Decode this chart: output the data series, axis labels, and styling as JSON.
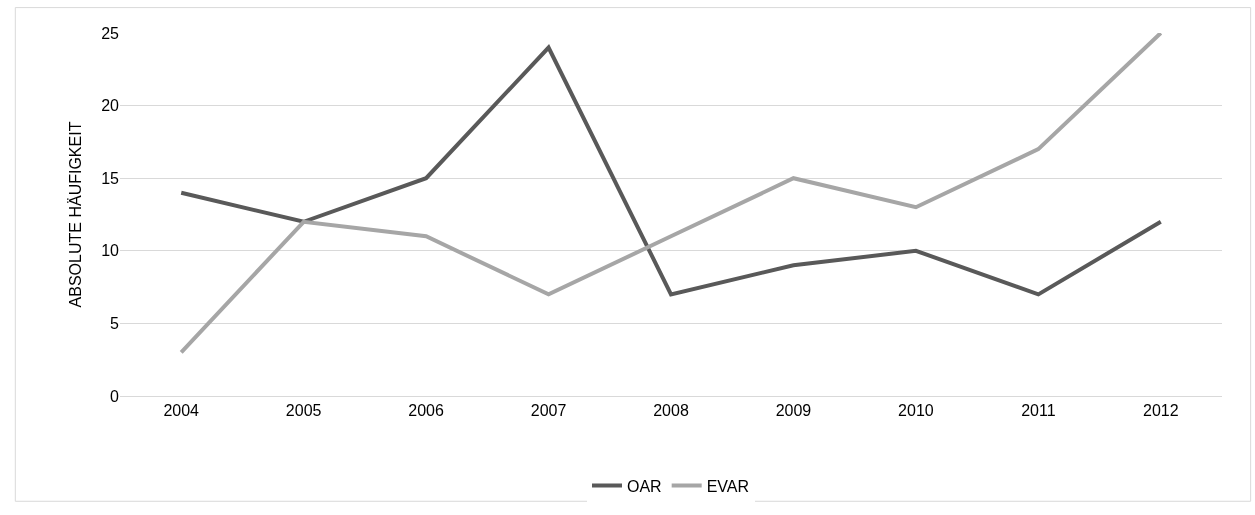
{
  "chart_data": {
    "type": "line",
    "ylabel": "ABSOLUTE HÄUFIGKEIT",
    "categories": [
      "2004",
      "2005",
      "2006",
      "2007",
      "2008",
      "2009",
      "2010",
      "2011",
      "2012"
    ],
    "series": [
      {
        "name": "OAR",
        "color": "#595959",
        "values": [
          14,
          12,
          15,
          24,
          7,
          9,
          10,
          7,
          12
        ]
      },
      {
        "name": "EVAR",
        "color": "#a6a6a6",
        "values": [
          3,
          12,
          11,
          7,
          11,
          15,
          13,
          17,
          25
        ]
      }
    ],
    "ylim": [
      0,
      25
    ],
    "yticks": [
      0,
      5,
      10,
      15,
      20,
      25
    ],
    "grid": "y",
    "legend": "bottom",
    "marker": "none",
    "line_style": "solid"
  }
}
